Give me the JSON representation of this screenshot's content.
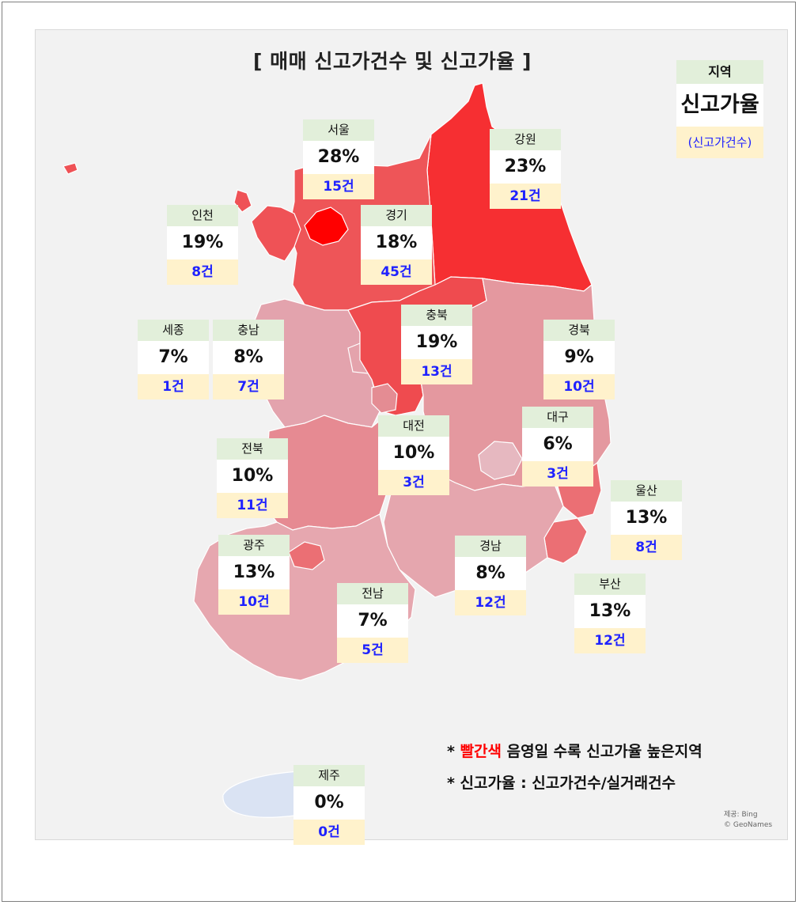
{
  "title": "[ 매매 신고가건수 및 신고가율 ]",
  "legend": {
    "name": "지역",
    "rate": "신고가율",
    "count": "(신고가건수)"
  },
  "notes": {
    "line1_bullet": "* ",
    "line1_red": "빨간색",
    "line1_rest": " 음영일 수록 신고가율 높은지역",
    "line2": "* 신고가율 : 신고가건수/실거래건수"
  },
  "credit": {
    "line1": "제공: Bing",
    "line2": "© GeoNames"
  },
  "colors": {
    "background": "#f2f2f2",
    "sea": "#dae3f3",
    "name_bg": "#e2efda",
    "count_bg": "#fff2cc",
    "count_text": "#1f22ff",
    "highlight_text": "#ff0000"
  },
  "chart_data": {
    "type": "choropleth",
    "title": "[ 매매 신고가건수 및 신고가율 ]",
    "value_label": "신고가율",
    "count_label": "신고가건수",
    "regions": [
      {
        "name": "서울",
        "rate": "28%",
        "count": "15건",
        "rate_value": 28,
        "count_value": 15,
        "color": "#ff0000"
      },
      {
        "name": "강원",
        "rate": "23%",
        "count": "21건",
        "rate_value": 23,
        "count_value": 21,
        "color": "#f62f32"
      },
      {
        "name": "인천",
        "rate": "19%",
        "count": "8건",
        "rate_value": 19,
        "count_value": 8,
        "color": "#ef5256"
      },
      {
        "name": "경기",
        "rate": "18%",
        "count": "45건",
        "rate_value": 18,
        "count_value": 45,
        "color": "#ee5558"
      },
      {
        "name": "충북",
        "rate": "19%",
        "count": "13건",
        "rate_value": 19,
        "count_value": 13,
        "color": "#ef4b4f"
      },
      {
        "name": "세종",
        "rate": "7%",
        "count": "1건",
        "rate_value": 7,
        "count_value": 1,
        "color": "#e4a3ac"
      },
      {
        "name": "충남",
        "rate": "8%",
        "count": "7건",
        "rate_value": 8,
        "count_value": 7,
        "color": "#e3a3ad"
      },
      {
        "name": "경북",
        "rate": "9%",
        "count": "10건",
        "rate_value": 9,
        "count_value": 10,
        "color": "#e4989f"
      },
      {
        "name": "대전",
        "rate": "10%",
        "count": "3건",
        "rate_value": 10,
        "count_value": 3,
        "color": "#e48c93"
      },
      {
        "name": "대구",
        "rate": "6%",
        "count": "3건",
        "rate_value": 6,
        "count_value": 3,
        "color": "#e6b8c0"
      },
      {
        "name": "전북",
        "rate": "10%",
        "count": "11건",
        "rate_value": 10,
        "count_value": 11,
        "color": "#e68a92"
      },
      {
        "name": "울산",
        "rate": "13%",
        "count": "8건",
        "rate_value": 13,
        "count_value": 8,
        "color": "#eb6f74"
      },
      {
        "name": "광주",
        "rate": "13%",
        "count": "10건",
        "rate_value": 13,
        "count_value": 10,
        "color": "#eb6f74"
      },
      {
        "name": "경남",
        "rate": "8%",
        "count": "12건",
        "rate_value": 8,
        "count_value": 12,
        "color": "#e5a6ae"
      },
      {
        "name": "전남",
        "rate": "7%",
        "count": "5건",
        "rate_value": 7,
        "count_value": 5,
        "color": "#e6a7af"
      },
      {
        "name": "부산",
        "rate": "13%",
        "count": "12건",
        "rate_value": 13,
        "count_value": 12,
        "color": "#eb6f74"
      },
      {
        "name": "제주",
        "rate": "0%",
        "count": "0건",
        "rate_value": 0,
        "count_value": 0,
        "color": "#dae3f3"
      }
    ]
  }
}
